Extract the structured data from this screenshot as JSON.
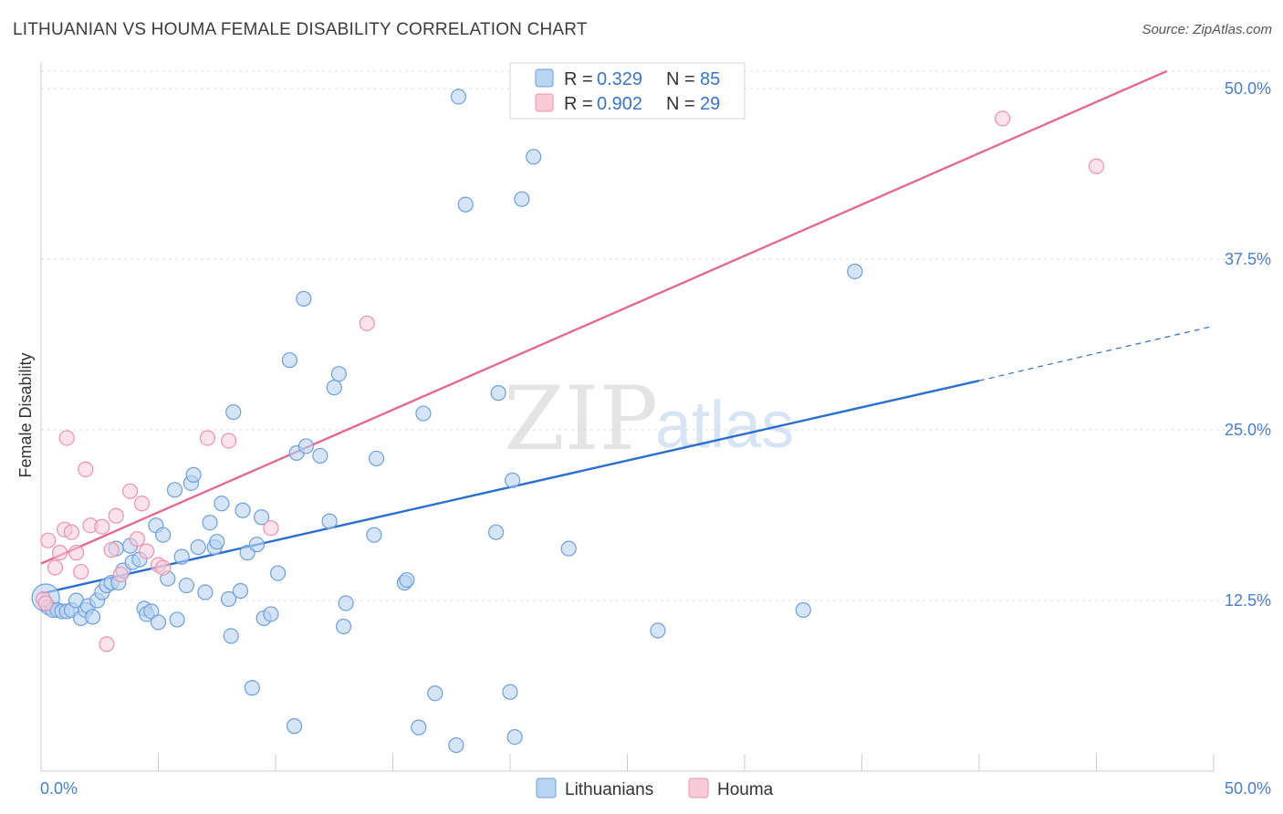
{
  "header": {
    "title": "LITHUANIAN VS HOUMA FEMALE DISABILITY CORRELATION CHART",
    "source": "Source: ZipAtlas.com"
  },
  "watermark": {
    "part1": "ZIP",
    "part2": "atlas"
  },
  "legend": {
    "rows": [
      {
        "r_label": "R =",
        "r_value": "0.329",
        "n_label": "N =",
        "n_value": "85"
      },
      {
        "r_label": "R =",
        "r_value": "0.902",
        "n_label": "N =",
        "n_value": "29"
      }
    ]
  },
  "colors": {
    "lithuanians_fill": "#b9d3f2",
    "lithuanians_stroke": "#6e9fdc",
    "lithuanians_line": "#2a6fcf",
    "houma_fill": "#f9cad8",
    "houma_stroke": "#eb93ae",
    "houma_line": "#e06a92",
    "tick_label": "#4a7fc9",
    "grid": "#dddddd"
  },
  "chart_data": {
    "type": "scatter",
    "title": "LITHUANIAN VS HOUMA FEMALE DISABILITY CORRELATION CHART",
    "xlabel": "",
    "ylabel": "Female Disability",
    "xlim": [
      0,
      50
    ],
    "ylim": [
      0,
      50
    ],
    "x_tick_labels": [
      "0.0%",
      "50.0%"
    ],
    "y_ticks": [
      12.5,
      25.0,
      37.5,
      50.0
    ],
    "y_tick_labels": [
      "12.5%",
      "25.0%",
      "37.5%",
      "50.0%"
    ],
    "grid": "horizontal dashed",
    "legend_position": "top-center",
    "series": [
      {
        "name": "Lithuanians",
        "r": 0.329,
        "n": 85,
        "trend": {
          "x0": 0,
          "y0": 13.0,
          "x1": 40,
          "y1": 28.6,
          "dashed_to_x": 50,
          "dashed_to_y": 32.6
        },
        "points": [
          [
            0.2,
            12.7
          ],
          [
            0.3,
            12.0
          ],
          [
            0.5,
            11.8
          ],
          [
            0.7,
            11.8
          ],
          [
            0.9,
            11.7
          ],
          [
            1.1,
            11.7
          ],
          [
            1.3,
            11.8
          ],
          [
            1.5,
            12.5
          ],
          [
            1.7,
            11.2
          ],
          [
            1.9,
            11.8
          ],
          [
            2.0,
            12.1
          ],
          [
            2.2,
            11.3
          ],
          [
            2.4,
            12.5
          ],
          [
            2.6,
            13.1
          ],
          [
            2.8,
            13.6
          ],
          [
            3.0,
            13.8
          ],
          [
            3.2,
            16.3
          ],
          [
            3.3,
            13.8
          ],
          [
            3.5,
            14.7
          ],
          [
            3.8,
            16.5
          ],
          [
            3.9,
            15.3
          ],
          [
            4.2,
            15.5
          ],
          [
            4.4,
            11.9
          ],
          [
            4.5,
            11.5
          ],
          [
            4.7,
            11.7
          ],
          [
            4.9,
            18.0
          ],
          [
            5.0,
            10.9
          ],
          [
            5.2,
            17.3
          ],
          [
            5.4,
            14.1
          ],
          [
            5.7,
            20.6
          ],
          [
            5.8,
            11.1
          ],
          [
            6.0,
            15.7
          ],
          [
            6.2,
            13.6
          ],
          [
            6.4,
            21.1
          ],
          [
            6.5,
            21.7
          ],
          [
            6.7,
            16.4
          ],
          [
            7.0,
            13.1
          ],
          [
            7.2,
            18.2
          ],
          [
            7.4,
            16.4
          ],
          [
            7.5,
            16.8
          ],
          [
            7.7,
            19.6
          ],
          [
            8.0,
            12.6
          ],
          [
            8.1,
            9.9
          ],
          [
            8.2,
            26.3
          ],
          [
            8.5,
            13.2
          ],
          [
            8.6,
            19.1
          ],
          [
            8.8,
            16.0
          ],
          [
            9.0,
            6.1
          ],
          [
            9.2,
            16.6
          ],
          [
            9.4,
            18.6
          ],
          [
            9.5,
            11.2
          ],
          [
            9.8,
            11.5
          ],
          [
            10.1,
            14.5
          ],
          [
            10.6,
            30.1
          ],
          [
            10.8,
            3.3
          ],
          [
            10.9,
            23.3
          ],
          [
            11.2,
            34.6
          ],
          [
            11.3,
            23.8
          ],
          [
            11.9,
            23.1
          ],
          [
            12.3,
            18.3
          ],
          [
            12.5,
            28.1
          ],
          [
            12.7,
            29.1
          ],
          [
            12.9,
            10.6
          ],
          [
            13.0,
            12.3
          ],
          [
            14.2,
            17.3
          ],
          [
            14.3,
            22.9
          ],
          [
            15.5,
            13.8
          ],
          [
            15.6,
            14.0
          ],
          [
            16.1,
            3.2
          ],
          [
            16.3,
            26.2
          ],
          [
            16.8,
            5.7
          ],
          [
            17.7,
            1.9
          ],
          [
            17.8,
            49.4
          ],
          [
            18.1,
            41.5
          ],
          [
            19.4,
            17.5
          ],
          [
            19.5,
            27.7
          ],
          [
            20.0,
            5.8
          ],
          [
            20.1,
            21.3
          ],
          [
            20.2,
            2.5
          ],
          [
            20.5,
            41.9
          ],
          [
            21.0,
            45.0
          ],
          [
            22.5,
            16.3
          ],
          [
            26.3,
            10.3
          ],
          [
            32.5,
            11.8
          ],
          [
            34.7,
            36.6
          ]
        ]
      },
      {
        "name": "Houma",
        "r": 0.902,
        "n": 29,
        "trend": {
          "x0": 0,
          "y0": 15.2,
          "x1": 48,
          "y1": 50.0
        },
        "points": [
          [
            0.1,
            12.6
          ],
          [
            0.3,
            16.9
          ],
          [
            0.6,
            14.9
          ],
          [
            0.8,
            16.0
          ],
          [
            1.0,
            17.7
          ],
          [
            1.1,
            24.4
          ],
          [
            1.3,
            17.5
          ],
          [
            1.5,
            16.0
          ],
          [
            1.7,
            14.6
          ],
          [
            1.9,
            22.1
          ],
          [
            2.1,
            18.0
          ],
          [
            2.6,
            17.9
          ],
          [
            2.8,
            9.3
          ],
          [
            3.0,
            16.2
          ],
          [
            3.2,
            18.7
          ],
          [
            3.4,
            14.4
          ],
          [
            3.8,
            20.5
          ],
          [
            4.1,
            17.0
          ],
          [
            4.3,
            19.6
          ],
          [
            4.5,
            16.1
          ],
          [
            5.0,
            15.1
          ],
          [
            5.2,
            14.9
          ],
          [
            7.1,
            24.4
          ],
          [
            8.0,
            24.2
          ],
          [
            9.8,
            17.8
          ],
          [
            13.9,
            32.8
          ],
          [
            41.0,
            47.8
          ],
          [
            45.0,
            44.3
          ],
          [
            0.2,
            12.3
          ]
        ]
      }
    ]
  },
  "axis": {
    "ylabel": "Female Disability",
    "x_left_label": "0.0%",
    "x_right_label": "50.0%",
    "y_labels": [
      "12.5%",
      "25.0%",
      "37.5%",
      "50.0%"
    ]
  },
  "bottom_legend": {
    "items": [
      {
        "label": "Lithuanians"
      },
      {
        "label": "Houma"
      }
    ]
  }
}
